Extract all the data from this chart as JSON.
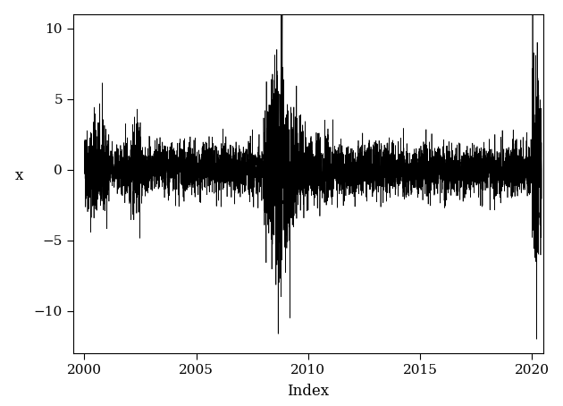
{
  "title": "",
  "xlabel": "Index",
  "ylabel": "x",
  "xlim": [
    1999.5,
    2020.5
  ],
  "ylim": [
    -13,
    11
  ],
  "yticks": [
    -10,
    -5,
    0,
    5,
    10
  ],
  "xticks": [
    2000,
    2005,
    2010,
    2015,
    2020
  ],
  "line_color": "black",
  "line_width": 0.5,
  "bg_color": "white",
  "figsize": [
    6.3,
    4.54
  ],
  "dpi": 100,
  "seed": 42
}
